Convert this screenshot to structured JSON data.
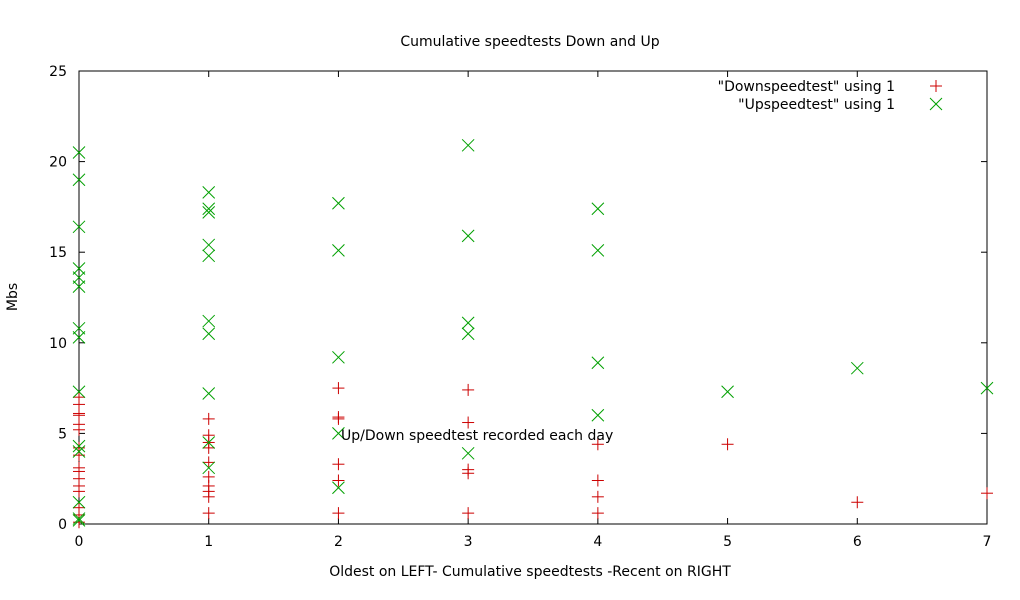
{
  "chart_data": {
    "type": "scatter",
    "title": "Cumulative speedtests Down and Up",
    "xlabel": "Oldest on LEFT- Cumulative speedtests -Recent on RIGHT",
    "ylabel": "Mbs",
    "xlim": [
      0,
      7
    ],
    "ylim": [
      0,
      25
    ],
    "xticks": [
      0,
      1,
      2,
      3,
      4,
      5,
      6,
      7
    ],
    "yticks": [
      0,
      5,
      10,
      15,
      20,
      25
    ],
    "grid": false,
    "legend_position": "top-right",
    "annotation": {
      "text": "Up/Down speedtest recorded each day",
      "x": 2.02,
      "y": 4.9
    },
    "series": [
      {
        "name": "\"Downspeedtest\" using 1",
        "marker": "plus",
        "color": "#cc0000",
        "x": [
          0,
          0,
          0,
          0,
          0,
          0,
          0,
          0,
          0,
          0,
          0,
          0,
          0,
          0,
          0,
          0,
          1,
          1,
          1,
          1,
          1,
          1,
          1,
          1,
          1,
          1,
          2,
          2,
          2,
          2,
          2,
          2,
          3,
          3,
          3,
          3,
          3,
          4,
          4,
          4,
          4,
          5,
          6,
          7
        ],
        "y": [
          0.1,
          0.5,
          0.9,
          1.8,
          2.1,
          2.5,
          2.9,
          3.1,
          3.8,
          4.2,
          5.2,
          5.5,
          6.0,
          6.1,
          6.6,
          7.0,
          0.6,
          1.5,
          1.8,
          2.1,
          2.6,
          3.4,
          4.2,
          4.5,
          4.9,
          5.8,
          0.6,
          2.4,
          3.3,
          5.8,
          5.9,
          7.5,
          0.6,
          2.8,
          3.0,
          5.6,
          7.4,
          0.6,
          1.5,
          2.4,
          4.4,
          4.4,
          1.2,
          1.7
        ]
      },
      {
        "name": "\"Upspeedtest\" using 1",
        "marker": "cross",
        "color": "#00a000",
        "x": [
          0,
          0,
          0,
          0,
          0,
          0,
          0,
          0,
          0,
          0,
          0,
          0,
          0,
          0,
          1,
          1,
          1,
          1,
          1,
          1,
          1,
          1,
          1,
          1,
          2,
          2,
          2,
          2,
          2,
          3,
          3,
          3,
          3,
          3,
          4,
          4,
          4,
          4,
          5,
          6,
          7
        ],
        "y": [
          0.3,
          1.2,
          4.0,
          4.3,
          7.3,
          10.3,
          10.8,
          13.1,
          13.6,
          14.1,
          16.4,
          19.0,
          20.5,
          0.2,
          3.1,
          4.5,
          7.2,
          10.5,
          11.2,
          14.8,
          15.4,
          17.2,
          17.4,
          18.3,
          2.0,
          5.0,
          9.2,
          15.1,
          17.7,
          3.9,
          10.5,
          11.1,
          15.9,
          20.9,
          6.0,
          8.9,
          15.1,
          17.4,
          7.3,
          8.6,
          7.5
        ]
      }
    ]
  }
}
